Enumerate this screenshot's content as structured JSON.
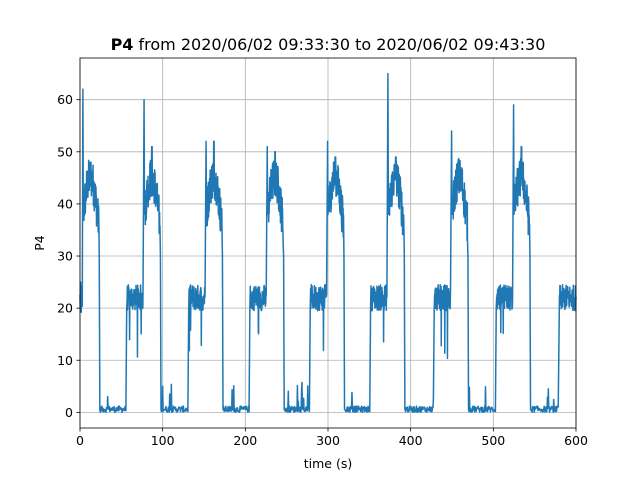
{
  "chart_data": {
    "type": "line",
    "title": {
      "bold": "P4",
      "rest": " from 2020/06/02 09:33:30 to 2020/06/02 09:43:30"
    },
    "xlabel": "time (s)",
    "ylabel": "P4",
    "xlim": [
      0,
      600
    ],
    "ylim": [
      -3,
      68
    ],
    "xticks": [
      0,
      100,
      200,
      300,
      400,
      500,
      600
    ],
    "yticks": [
      0,
      10,
      20,
      30,
      40,
      50,
      60
    ],
    "grid": true,
    "legend": false,
    "color": "#1f77b4",
    "series": [
      {
        "cycle_starts": [
          3,
          77,
          152,
          226,
          299,
          372,
          449,
          524
        ],
        "cycle_peaks": [
          62,
          60,
          52,
          51,
          52,
          65,
          54,
          59
        ],
        "mid_peaks": [
          48,
          51,
          52,
          50,
          49,
          49,
          48,
          51
        ],
        "low_level": 22,
        "off_level": 0
      }
    ]
  }
}
